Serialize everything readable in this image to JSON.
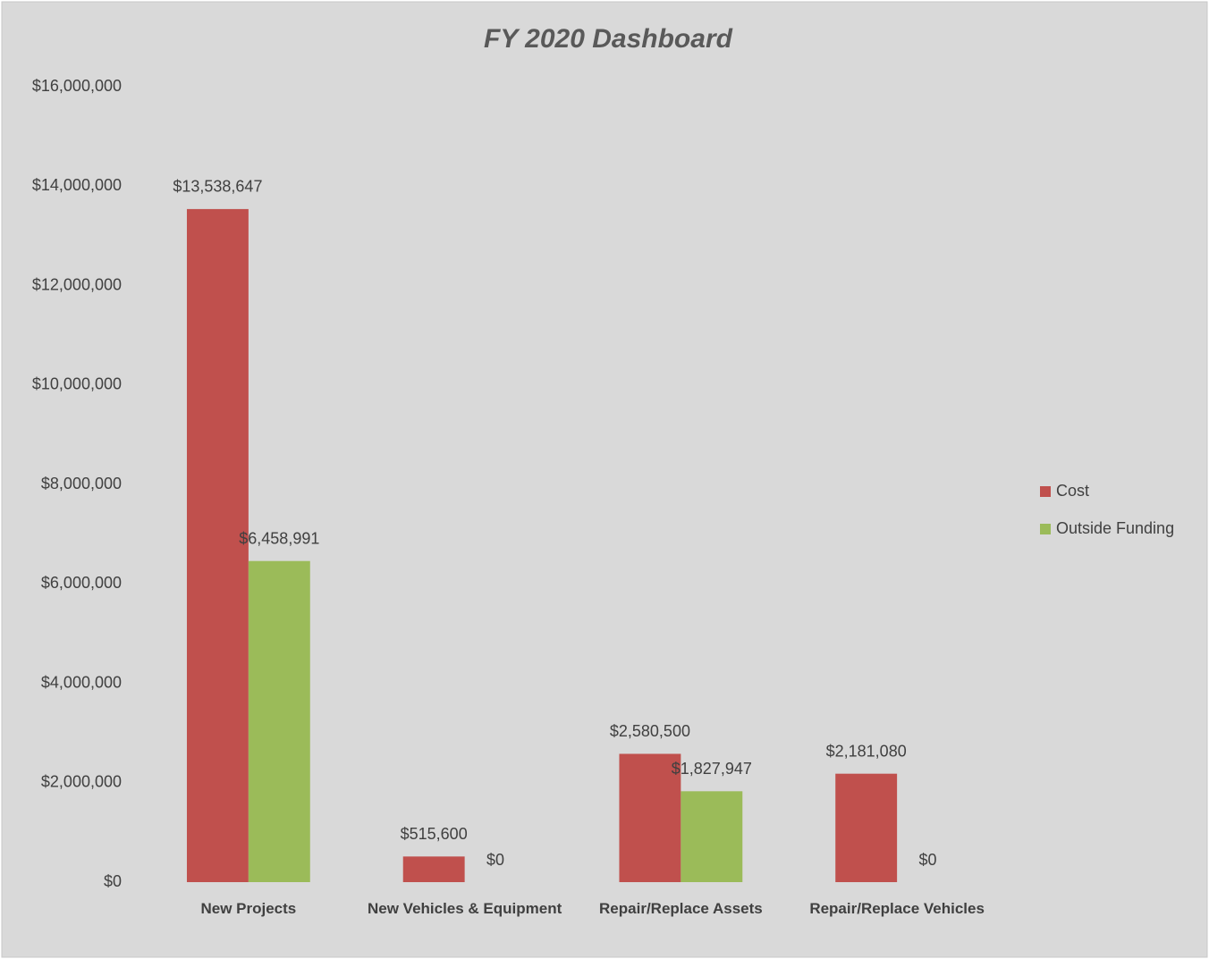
{
  "chart_data": {
    "type": "bar",
    "title": "FY 2020 Dashboard",
    "categories": [
      "New Projects",
      "New Vehicles & Equipment",
      "Repair/Replace Assets",
      "Repair/Replace Vehicles"
    ],
    "series": [
      {
        "name": "Cost",
        "color": "#c0504d",
        "values": [
          13538647,
          515600,
          2580500,
          2181080
        ],
        "value_labels": [
          "$13,538,647",
          "$515,600",
          "$2,580,500",
          "$2,181,080"
        ]
      },
      {
        "name": "Outside Funding",
        "color": "#9bbb59",
        "values": [
          6458991,
          0,
          1827947,
          0
        ],
        "value_labels": [
          "$6,458,991",
          "$0",
          "$1,827,947",
          "$0"
        ]
      }
    ],
    "ylim": [
      0,
      16000000
    ],
    "yticks": [
      {
        "value": 0,
        "label": "$0"
      },
      {
        "value": 2000000,
        "label": "$2,000,000"
      },
      {
        "value": 4000000,
        "label": "$4,000,000"
      },
      {
        "value": 6000000,
        "label": "$6,000,000"
      },
      {
        "value": 8000000,
        "label": "$8,000,000"
      },
      {
        "value": 10000000,
        "label": "$10,000,000"
      },
      {
        "value": 12000000,
        "label": "$12,000,000"
      },
      {
        "value": 14000000,
        "label": "$14,000,000"
      },
      {
        "value": 16000000,
        "label": "$16,000,000"
      }
    ],
    "grid": false,
    "legend": "right"
  }
}
